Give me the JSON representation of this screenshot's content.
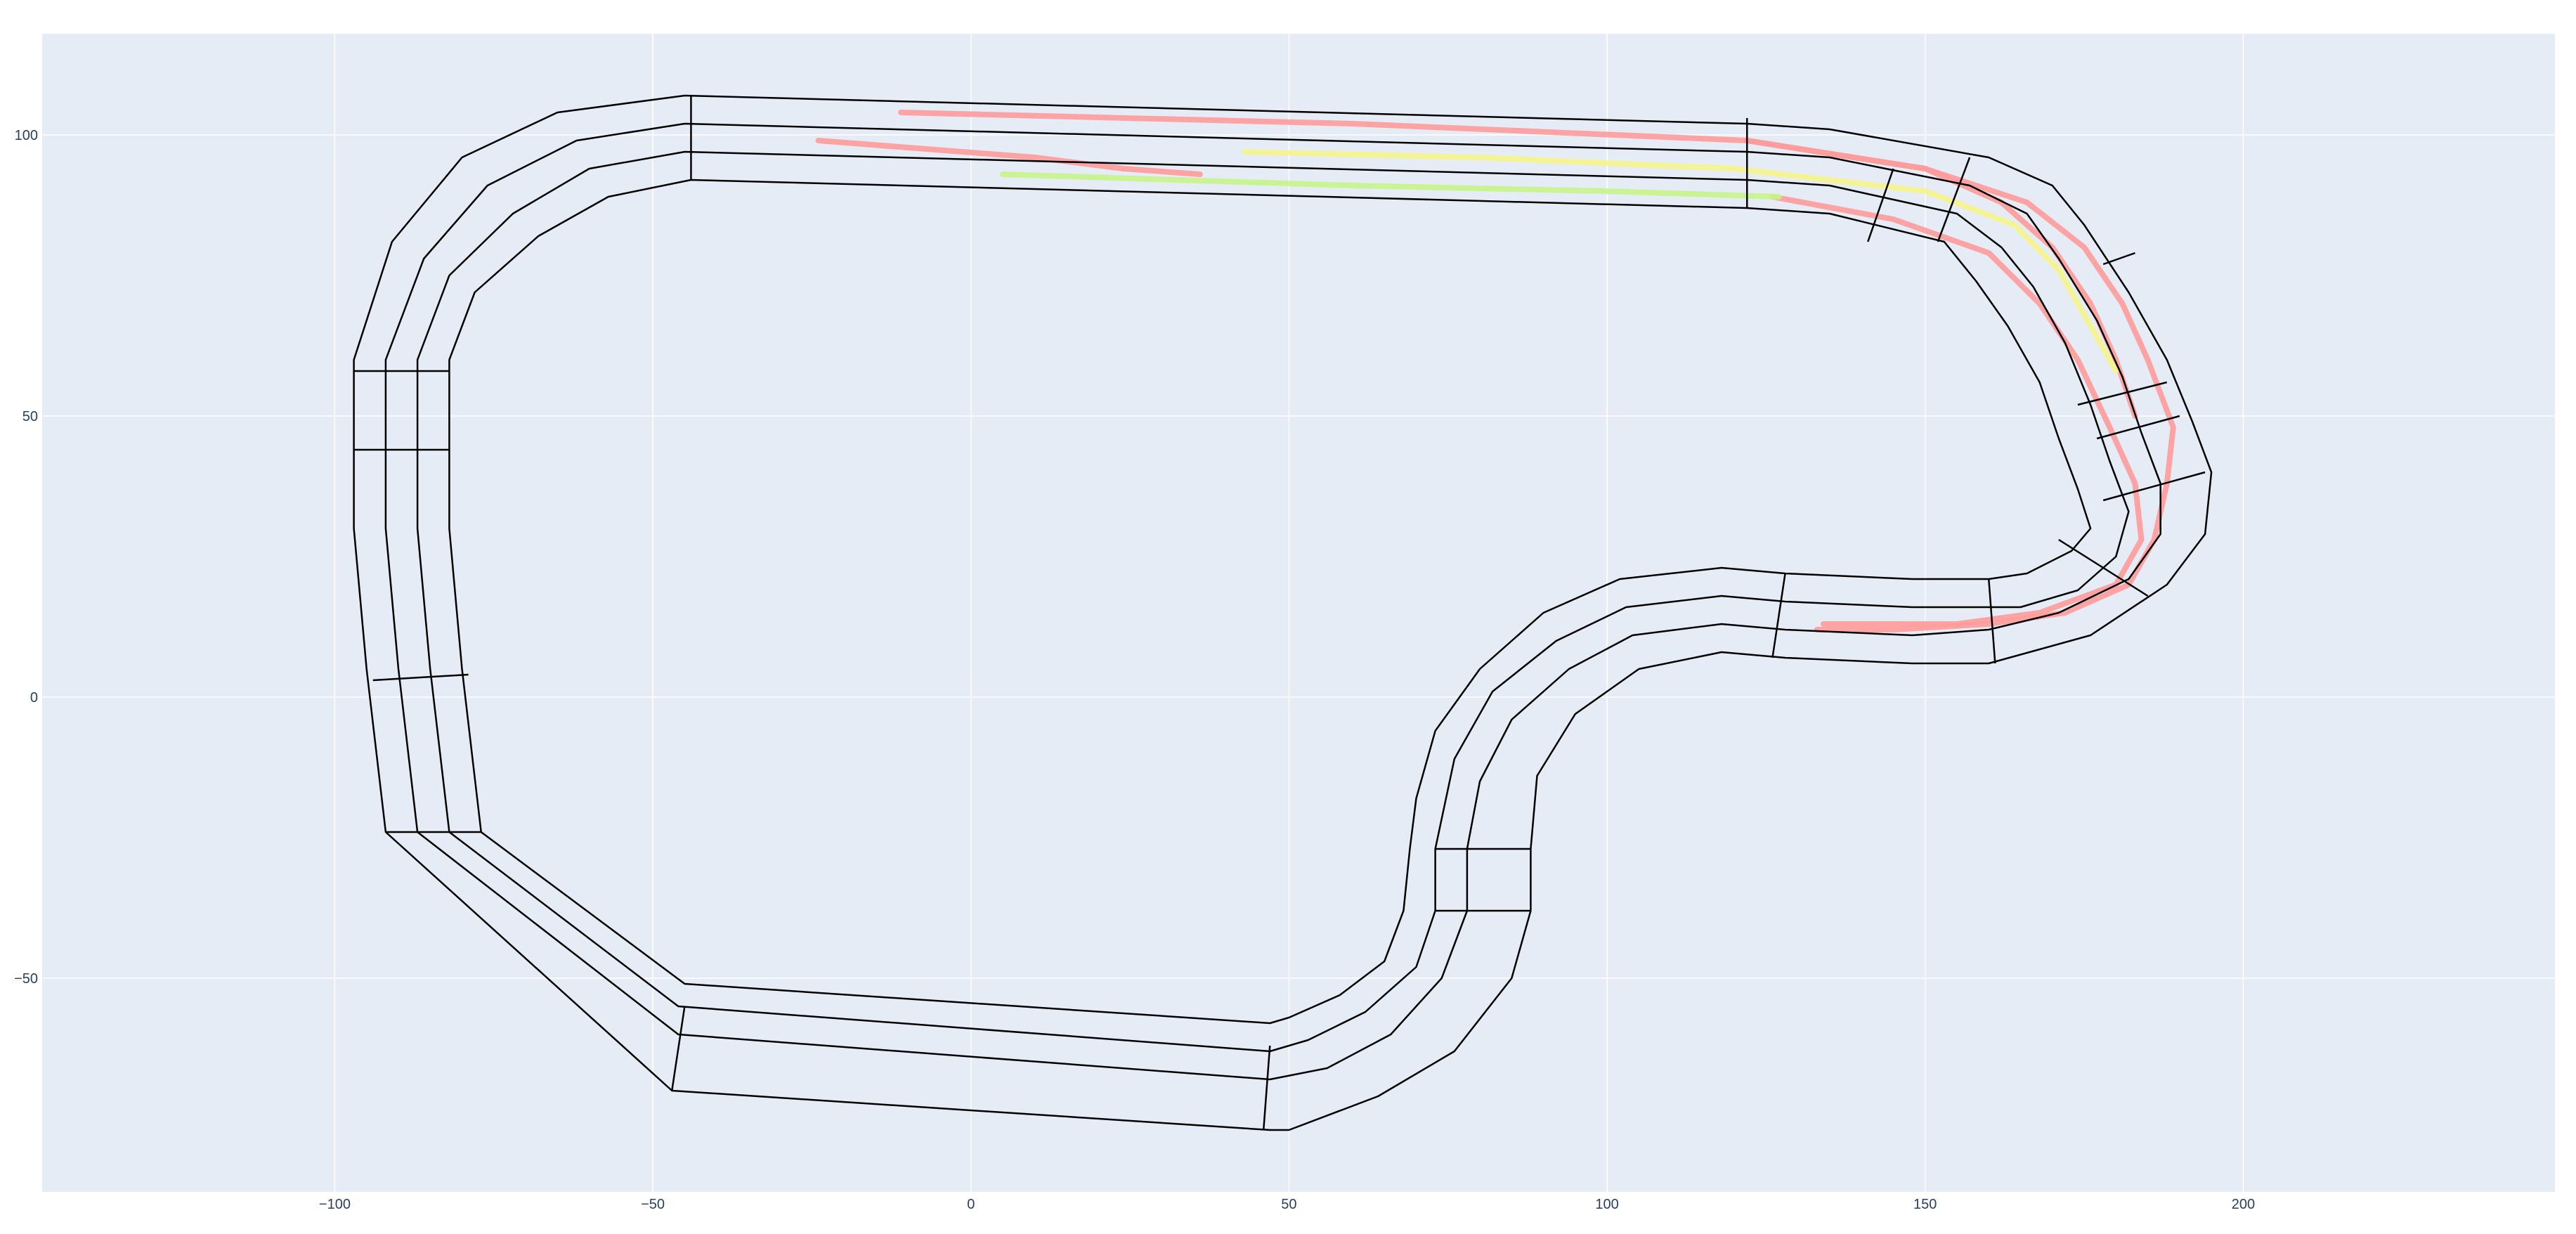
{
  "chart_data": {
    "type": "line",
    "title": "",
    "xlabel": "",
    "ylabel": "",
    "xlim": [
      -146,
      249
    ],
    "ylim": [
      -88,
      118
    ],
    "grid": true,
    "legend": "none",
    "x_ticks": [
      -100,
      -50,
      0,
      50,
      100,
      150,
      200
    ],
    "y_ticks": [
      -50,
      0,
      50,
      100
    ],
    "x_tick_labels": [
      "−100",
      "−50",
      "0",
      "50",
      "100",
      "150",
      "200"
    ],
    "y_tick_labels": [
      "−50",
      "0",
      "50",
      "100"
    ],
    "colors": {
      "background": "#e5ecf6",
      "grid": "#ffffff",
      "track": "#000000",
      "trajectory_red": "#ff9b9b",
      "trajectory_yellow": "#f6f58a",
      "trajectory_green": "#c6f58a",
      "tick_text": "#2a3f5f"
    },
    "track": {
      "name": "",
      "lanes": [
        {
          "name": "",
          "points": [
            [
              -45,
              107
            ],
            [
              122,
              102
            ],
            [
              135,
              101
            ],
            [
              160,
              96
            ],
            [
              170,
              91
            ],
            [
              175,
              84
            ],
            [
              182,
              72
            ],
            [
              188,
              60
            ],
            [
              192,
              49
            ],
            [
              195,
              40
            ],
            [
              194,
              29
            ],
            [
              188,
              20
            ],
            [
              176,
              11
            ],
            [
              160,
              6
            ],
            [
              148,
              6
            ],
            [
              128,
              7
            ],
            [
              118,
              8
            ],
            [
              105,
              5
            ],
            [
              95,
              -3
            ],
            [
              89,
              -14
            ],
            [
              88,
              -27
            ],
            [
              88,
              -38
            ],
            [
              85,
              -50
            ],
            [
              76,
              -63
            ],
            [
              64,
              -71
            ],
            [
              50,
              -77
            ],
            [
              47,
              -77
            ],
            [
              -47,
              -70
            ],
            [
              -92,
              -24
            ],
            [
              -95,
              5
            ],
            [
              -97,
              30
            ],
            [
              -97,
              60
            ],
            [
              -91,
              81
            ],
            [
              -80,
              96
            ],
            [
              -65,
              104
            ],
            [
              -45,
              107
            ]
          ]
        },
        {
          "name": "",
          "points": [
            [
              -45,
              102
            ],
            [
              122,
              97
            ],
            [
              135,
              96
            ],
            [
              157,
              91
            ],
            [
              166,
              86
            ],
            [
              171,
              78
            ],
            [
              177,
              67
            ],
            [
              181,
              57
            ],
            [
              184,
              47
            ],
            [
              187,
              38
            ],
            [
              187,
              29
            ],
            [
              182,
              21
            ],
            [
              171,
              15
            ],
            [
              160,
              12
            ],
            [
              148,
              11
            ],
            [
              128,
              12
            ],
            [
              118,
              13
            ],
            [
              104,
              11
            ],
            [
              94,
              5
            ],
            [
              85,
              -4
            ],
            [
              80,
              -15
            ],
            [
              78,
              -27
            ],
            [
              78,
              -38
            ],
            [
              74,
              -50
            ],
            [
              66,
              -60
            ],
            [
              56,
              -66
            ],
            [
              47,
              -68
            ],
            [
              -46,
              -60
            ],
            [
              -87,
              -24
            ],
            [
              -90,
              5
            ],
            [
              -92,
              30
            ],
            [
              -92,
              60
            ],
            [
              -86,
              78
            ],
            [
              -76,
              91
            ],
            [
              -62,
              99
            ],
            [
              -45,
              102
            ]
          ]
        },
        {
          "name": "",
          "points": [
            [
              -45,
              97
            ],
            [
              122,
              92
            ],
            [
              135,
              91
            ],
            [
              155,
              86
            ],
            [
              162,
              80
            ],
            [
              167,
              73
            ],
            [
              172,
              63
            ],
            [
              176,
              52
            ],
            [
              179,
              42
            ],
            [
              182,
              33
            ],
            [
              180,
              25
            ],
            [
              174,
              19
            ],
            [
              165,
              16
            ],
            [
              160,
              16
            ],
            [
              148,
              16
            ],
            [
              128,
              17
            ],
            [
              118,
              18
            ],
            [
              103,
              16
            ],
            [
              92,
              10
            ],
            [
              82,
              1
            ],
            [
              76,
              -11
            ],
            [
              73,
              -27
            ],
            [
              73,
              -38
            ],
            [
              70,
              -48
            ],
            [
              62,
              -56
            ],
            [
              53,
              -61
            ],
            [
              47,
              -63
            ],
            [
              -46,
              -55
            ],
            [
              -82,
              -24
            ],
            [
              -85,
              5
            ],
            [
              -87,
              30
            ],
            [
              -87,
              60
            ],
            [
              -82,
              75
            ],
            [
              -72,
              86
            ],
            [
              -60,
              94
            ],
            [
              -45,
              97
            ]
          ]
        },
        {
          "name": "",
          "points": [
            [
              -44,
              92
            ],
            [
              122,
              87
            ],
            [
              135,
              86
            ],
            [
              153,
              81
            ],
            [
              158,
              74
            ],
            [
              163,
              66
            ],
            [
              168,
              56
            ],
            [
              171,
              46
            ],
            [
              174,
              37
            ],
            [
              176,
              30
            ],
            [
              173,
              26
            ],
            [
              166,
              22
            ],
            [
              160,
              21
            ],
            [
              148,
              21
            ],
            [
              128,
              22
            ],
            [
              118,
              23
            ],
            [
              102,
              21
            ],
            [
              90,
              15
            ],
            [
              80,
              5
            ],
            [
              73,
              -6
            ],
            [
              70,
              -18
            ],
            [
              69,
              -27
            ],
            [
              68,
              -38
            ],
            [
              65,
              -47
            ],
            [
              58,
              -53
            ],
            [
              50,
              -57
            ],
            [
              47,
              -58
            ],
            [
              -45,
              -51
            ],
            [
              -77,
              -24
            ],
            [
              -80,
              5
            ],
            [
              -82,
              30
            ],
            [
              -82,
              60
            ],
            [
              -78,
              72
            ],
            [
              -68,
              82
            ],
            [
              -57,
              89
            ],
            [
              -44,
              92
            ]
          ]
        }
      ],
      "cross_sections": [
        [
          [
            -44,
            107
          ],
          [
            -44,
            92
          ]
        ],
        [
          [
            122,
            103
          ],
          [
            122,
            87
          ]
        ],
        [
          [
            145,
            94
          ],
          [
            141,
            81
          ]
        ],
        [
          [
            157,
            96
          ],
          [
            152,
            81
          ]
        ],
        [
          [
            183,
            79
          ],
          [
            178,
            77
          ]
        ],
        [
          [
            188,
            56
          ],
          [
            174,
            52
          ]
        ],
        [
          [
            190,
            50
          ],
          [
            177,
            46
          ]
        ],
        [
          [
            194,
            40
          ],
          [
            178,
            35
          ]
        ],
        [
          [
            171,
            28
          ],
          [
            185,
            18
          ]
        ],
        [
          [
            160,
            21
          ],
          [
            161,
            6
          ]
        ],
        [
          [
            128,
            22
          ],
          [
            126,
            7
          ]
        ],
        [
          [
            73,
            -27
          ],
          [
            88,
            -27
          ]
        ],
        [
          [
            73,
            -38
          ],
          [
            88,
            -38
          ]
        ],
        [
          [
            47,
            -62
          ],
          [
            46,
            -77
          ]
        ],
        [
          [
            -45,
            -55
          ],
          [
            -47,
            -70
          ]
        ],
        [
          [
            -77,
            -24
          ],
          [
            -92,
            -24
          ]
        ],
        [
          [
            -79,
            4
          ],
          [
            -94,
            3
          ]
        ],
        [
          [
            -82,
            44
          ],
          [
            -97,
            44
          ]
        ],
        [
          [
            -82,
            58
          ],
          [
            -97,
            58
          ]
        ]
      ]
    },
    "series": [
      {
        "name": "",
        "color": "#ff9b9b",
        "points": [
          [
            -11,
            104
          ],
          [
            60,
            102
          ],
          [
            122,
            99
          ],
          [
            150,
            94
          ],
          [
            166,
            88
          ],
          [
            175,
            80
          ],
          [
            181,
            70
          ],
          [
            185,
            60
          ],
          [
            189,
            48
          ],
          [
            188,
            38
          ],
          [
            186,
            28
          ],
          [
            182,
            20
          ],
          [
            172,
            15
          ],
          [
            160,
            13
          ],
          [
            145,
            12
          ],
          [
            133,
            12
          ]
        ]
      },
      {
        "name": "",
        "color": "#ff9b9b",
        "points": [
          [
            -24,
            99
          ],
          [
            10,
            96
          ],
          [
            24,
            94
          ],
          [
            36,
            93
          ]
        ]
      },
      {
        "name": "",
        "color": "#ff9b9b",
        "points": [
          [
            126,
            89
          ],
          [
            145,
            85
          ],
          [
            160,
            79
          ],
          [
            168,
            70
          ],
          [
            174,
            60
          ],
          [
            179,
            48
          ],
          [
            183,
            38
          ],
          [
            184,
            28
          ],
          [
            180,
            20
          ],
          [
            168,
            15
          ],
          [
            155,
            13
          ],
          [
            140,
            13
          ],
          [
            134,
            13
          ]
        ]
      },
      {
        "name": "",
        "color": "#ff9b9b",
        "points": [
          [
            122,
            99
          ],
          [
            150,
            94
          ],
          [
            162,
            88
          ],
          [
            170,
            80
          ],
          [
            176,
            70
          ],
          [
            180,
            60
          ],
          [
            183,
            50
          ]
        ]
      },
      {
        "name": "",
        "color": "#f6f58a",
        "points": [
          [
            43,
            97
          ],
          [
            80,
            96
          ],
          [
            120,
            94
          ],
          [
            150,
            90
          ],
          [
            164,
            84
          ],
          [
            171,
            76
          ],
          [
            176,
            66
          ],
          [
            180,
            58
          ]
        ]
      },
      {
        "name": "",
        "color": "#c6f58a",
        "points": [
          [
            5,
            93
          ],
          [
            60,
            91
          ],
          [
            100,
            90
          ],
          [
            127,
            89
          ]
        ]
      }
    ]
  }
}
